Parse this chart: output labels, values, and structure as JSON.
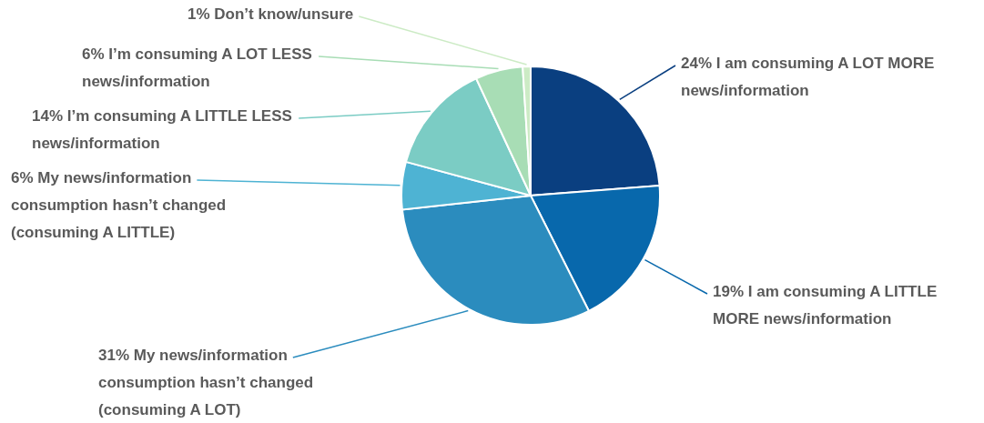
{
  "chart_data": {
    "type": "pie",
    "categories": [
      "I am consuming A LOT MORE news/information",
      "I am consuming A LITTLE MORE news/information",
      "My news/information consumption hasn’t changed (consuming A LOT)",
      "My news/information consumption hasn’t changed (consuming A LITTLE)",
      "I’m consuming A LITTLE LESS news/information",
      "I’m consuming A LOT LESS news/information",
      "Don’t know/unsure"
    ],
    "values": [
      24,
      19,
      31,
      6,
      14,
      6,
      1
    ],
    "value_labels": [
      "24%",
      "19%",
      "31%",
      "6%",
      "14%",
      "6%",
      "1%"
    ],
    "colors": [
      "#0a3f80",
      "#0868ac",
      "#2b8cbe",
      "#4eb3d3",
      "#7bccc4",
      "#a8ddb5",
      "#ccebc5"
    ]
  }
}
